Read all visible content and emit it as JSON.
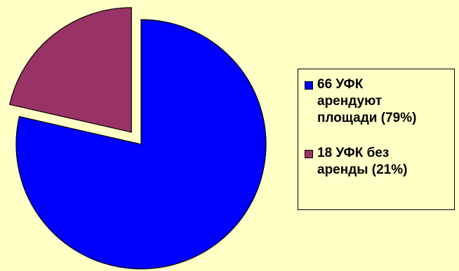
{
  "chart_data": {
    "type": "pie",
    "title": "",
    "labels": [
      "66 УФК\nарендуют\nплощади (79%)",
      "18 УФК без\nаренды (21%)"
    ],
    "values": [
      66,
      18
    ],
    "percent": [
      79,
      21
    ],
    "colors": [
      "#0000FF",
      "#993366"
    ],
    "exploded": [
      false,
      true
    ],
    "legend_position": "right",
    "background": "#FFFFC6"
  }
}
